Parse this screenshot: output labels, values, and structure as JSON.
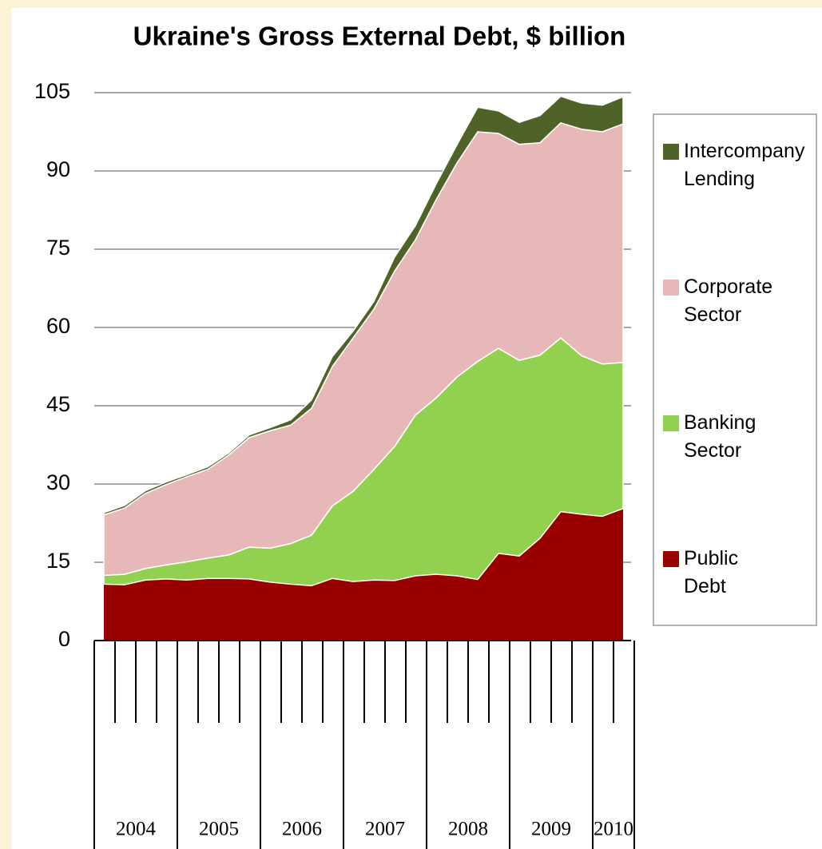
{
  "chart_data": {
    "type": "stacked_area",
    "title": "Ukraine's Gross External Debt, $ billion",
    "categories": [
      null,
      null,
      null,
      null,
      null,
      null,
      null,
      null,
      null,
      null,
      null,
      null,
      null,
      null,
      null,
      null,
      null,
      null,
      null,
      null,
      null,
      null,
      null,
      null,
      null,
      null
    ],
    "year_labels": [
      "2004",
      "2005",
      "2006",
      "2007",
      "2008",
      "2009",
      "2010"
    ],
    "ylim": [
      0,
      105
    ],
    "yticks": [
      0,
      15,
      30,
      45,
      60,
      75,
      90,
      105
    ],
    "grid": true,
    "legend": "right",
    "series": [
      {
        "name": "Public Debt",
        "color": "#990000",
        "values": [
          10.8,
          10.7,
          11.6,
          11.8,
          11.6,
          11.9,
          11.9,
          11.8,
          11.2,
          10.8,
          10.5,
          11.9,
          11.3,
          11.6,
          11.5,
          12.4,
          12.7,
          12.4,
          11.7,
          16.7,
          16.2,
          19.6,
          24.7,
          24.2,
          23.8,
          25.3
        ]
      },
      {
        "name": "Banking Sector",
        "color": "#92d050",
        "values": [
          1.7,
          2.0,
          2.2,
          2.7,
          3.5,
          3.9,
          4.5,
          6.1,
          6.5,
          7.8,
          9.7,
          13.9,
          17.3,
          21.2,
          25.7,
          30.8,
          33.8,
          38.1,
          41.8,
          39.3,
          37.5,
          35.1,
          33.3,
          30.4,
          29.2,
          28.0
        ]
      },
      {
        "name": "Corporate Sector",
        "color": "#e6b9b8",
        "values": [
          11.6,
          12.7,
          14.4,
          15.4,
          16.3,
          17.0,
          19.1,
          21.0,
          22.5,
          22.7,
          24.3,
          26.7,
          29.4,
          30.7,
          33.6,
          33.6,
          38.0,
          41.0,
          44.0,
          41.2,
          41.4,
          40.7,
          41.2,
          43.4,
          44.5,
          45.7
        ]
      },
      {
        "name": "Intercompany Lending",
        "color": "#4f6228",
        "values": [
          0.4,
          0.5,
          0.5,
          0.5,
          0.4,
          0.5,
          0.4,
          0.5,
          0.6,
          1.0,
          1.6,
          1.9,
          1.3,
          1.5,
          2.7,
          2.7,
          3.0,
          3.5,
          4.7,
          4.3,
          4.2,
          5.2,
          5.1,
          5.0,
          5.1,
          5.2
        ]
      }
    ]
  }
}
